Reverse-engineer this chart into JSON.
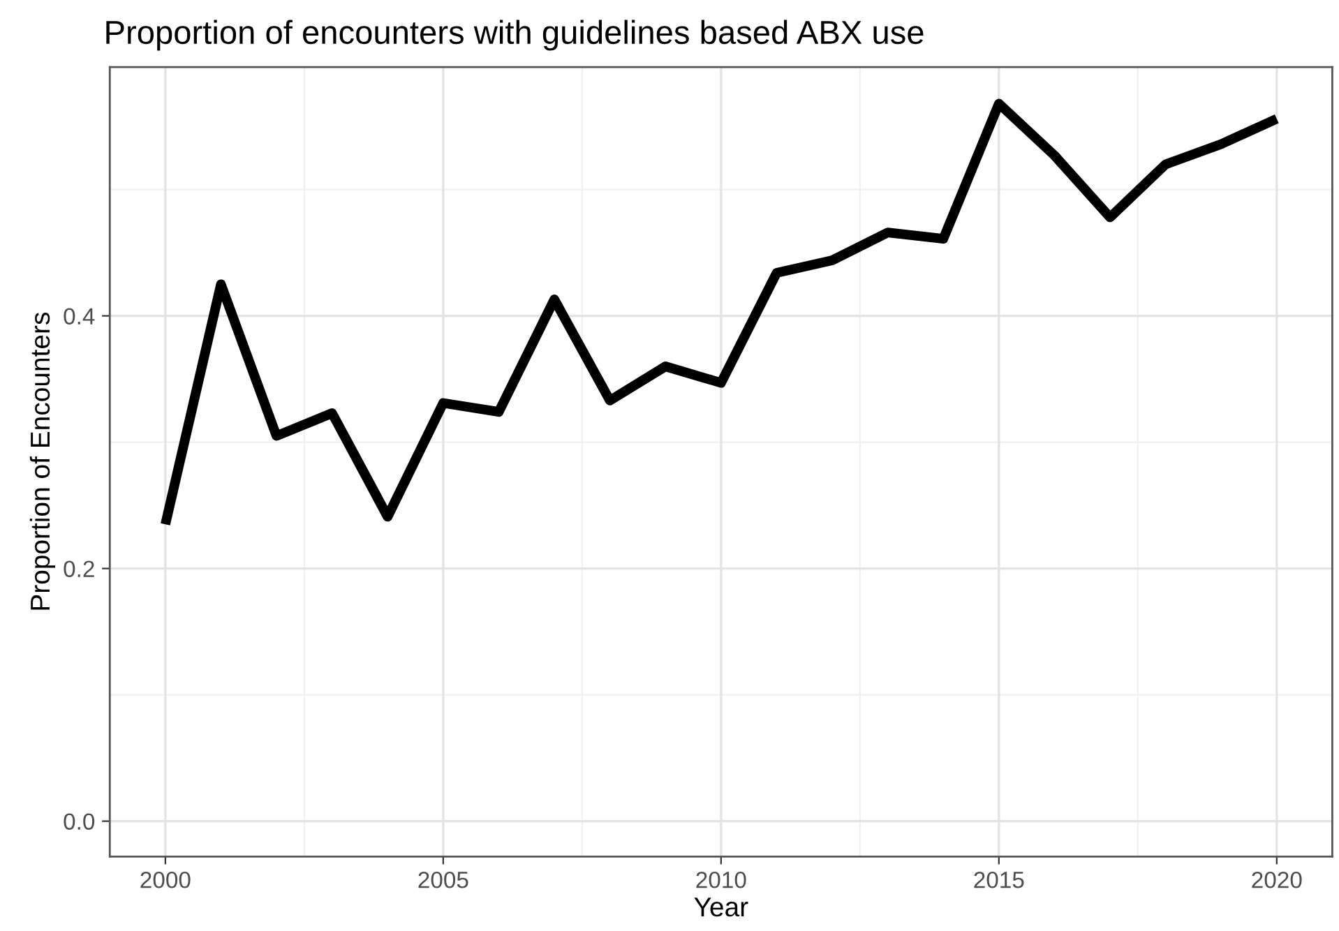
{
  "chart_data": {
    "type": "line",
    "title": "Proportion of encounters with guidelines based ABX use",
    "xlabel": "Year",
    "ylabel": "Proportion of Encounters",
    "x": [
      2000,
      2001,
      2002,
      2003,
      2004,
      2005,
      2006,
      2007,
      2008,
      2009,
      2010,
      2011,
      2012,
      2013,
      2014,
      2015,
      2016,
      2017,
      2018,
      2019,
      2020
    ],
    "series": [
      {
        "color": "#000000",
        "values": [
          0.235,
          0.425,
          0.305,
          0.323,
          0.241,
          0.331,
          0.324,
          0.413,
          0.333,
          0.36,
          0.347,
          0.434,
          0.444,
          0.466,
          0.461,
          0.568,
          0.527,
          0.478,
          0.52,
          0.536,
          0.556
        ]
      }
    ],
    "xlim": [
      1999,
      2021
    ],
    "ylim": [
      -0.028,
      0.597
    ],
    "xticks": [
      2000,
      2005,
      2010,
      2015,
      2020
    ],
    "yticks": [
      {
        "value": 0,
        "label": "0.0"
      },
      0.2,
      0.4
    ],
    "grid": true,
    "line_style": "solid"
  }
}
